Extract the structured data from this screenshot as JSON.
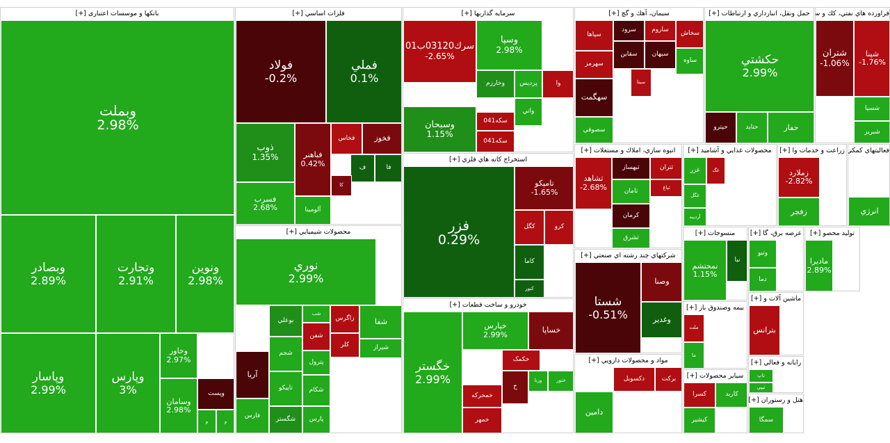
{
  "colors": {
    "strong_up": "#22a91c",
    "up": "#1f8f1a",
    "bright_up": "#37c82e",
    "flat_up": "#0f5f0f",
    "down": "#b00e12",
    "strong_down": "#7b0a0e",
    "deep_down": "#4a0508",
    "header_bg": "#ffffff"
  },
  "sectors": [
    {
      "label": "بانکها و موسسات اعتباری [+]",
      "tiles": [
        {
          "symbol": "وبملت",
          "change": "2.98%",
          "color": "strong_up"
        },
        {
          "symbol": "وبصادر",
          "change": "2.89%",
          "color": "strong_up"
        },
        {
          "symbol": "وتجارت",
          "change": "2.91%",
          "color": "strong_up"
        },
        {
          "symbol": "ونوين",
          "change": "2.98%",
          "color": "strong_up"
        },
        {
          "symbol": "وپاسار",
          "change": "2.99%",
          "color": "strong_up"
        },
        {
          "symbol": "وپارس",
          "change": "3%",
          "color": "strong_up"
        },
        {
          "symbol": "وخاور",
          "change": "2.97%",
          "color": "strong_up"
        },
        {
          "symbol": "وسامان",
          "change": "2.98%",
          "color": "strong_up"
        },
        {
          "symbol": "وپست",
          "change": "",
          "color": "deep_down"
        },
        {
          "symbol": "و",
          "change": "",
          "color": "strong_up"
        },
        {
          "symbol": "و",
          "change": "",
          "color": "strong_up"
        }
      ]
    },
    {
      "label": "فلزات اساسي [+]",
      "tiles": [
        {
          "symbol": "فولاد",
          "change": "-0.2%",
          "color": "deep_down"
        },
        {
          "symbol": "فملي",
          "change": "0.1%",
          "color": "flat_up"
        },
        {
          "symbol": "ذوب",
          "change": "1.35%",
          "color": "up"
        },
        {
          "symbol": "فباهنر",
          "change": "0.42%",
          "color": "strong_down"
        },
        {
          "symbol": "فخاس",
          "change": "",
          "color": "down"
        },
        {
          "symbol": "فخوز",
          "change": "",
          "color": "strong_down"
        },
        {
          "symbol": "ف",
          "change": "",
          "color": "flat_up"
        },
        {
          "symbol": "فا",
          "change": "",
          "color": "flat_up"
        },
        {
          "symbol": "کا",
          "change": "",
          "color": "strong_down"
        },
        {
          "symbol": "فسرب",
          "change": "2.68%",
          "color": "strong_up"
        },
        {
          "symbol": "آلومينا",
          "change": "",
          "color": "strong_up"
        }
      ]
    },
    {
      "label": "سرمايه گذاريها [+]",
      "tiles": [
        {
          "symbol": "سرك03120ب01",
          "change": "-2.65%",
          "color": "down"
        },
        {
          "symbol": "وسپا",
          "change": "2.98%",
          "color": "strong_up"
        },
        {
          "symbol": "وسبحان",
          "change": "1.15%",
          "color": "up"
        },
        {
          "symbol": "پرديس",
          "change": "",
          "color": "strong_up"
        },
        {
          "symbol": "وخارزم",
          "change": "",
          "color": "up"
        },
        {
          "symbol": "سكه041",
          "change": "",
          "color": "down"
        },
        {
          "symbol": "سكه041",
          "change": "",
          "color": "down"
        },
        {
          "symbol": "واتي",
          "change": "",
          "color": "strong_up"
        },
        {
          "symbol": "وا",
          "change": "",
          "color": "down"
        }
      ]
    },
    {
      "label": "استخراج کانه هاي فلزي [+]",
      "tiles": [
        {
          "symbol": "فزر",
          "change": "0.29%",
          "color": "flat_up"
        },
        {
          "symbol": "تامپکو",
          "change": "-1.65%",
          "color": "strong_down"
        },
        {
          "symbol": "کگل",
          "change": "",
          "color": "down"
        },
        {
          "symbol": "کرو",
          "change": "",
          "color": "down"
        },
        {
          "symbol": "کاما",
          "change": "",
          "color": "flat_up"
        },
        {
          "symbol": "کنور",
          "change": "",
          "color": "flat_up"
        }
      ]
    },
    {
      "label": "خودرو و ساخت قطعات [+]",
      "tiles": [
        {
          "symbol": "خگستر",
          "change": "2.99%",
          "color": "strong_up"
        },
        {
          "symbol": "خپارس",
          "change": "2.99%",
          "color": "strong_up"
        },
        {
          "symbol": "خساپا",
          "change": "",
          "color": "strong_down"
        },
        {
          "symbol": "خکمک",
          "change": "",
          "color": "down"
        },
        {
          "symbol": "ورنا",
          "change": "",
          "color": "strong_up"
        },
        {
          "symbol": "خنور",
          "change": "",
          "color": "strong_up"
        },
        {
          "symbol": "خمحرکه",
          "change": "",
          "color": "down"
        },
        {
          "symbol": "خمهر",
          "change": "",
          "color": "down"
        },
        {
          "symbol": "خ",
          "change": "",
          "color": "strong_down"
        }
      ]
    },
    {
      "label": "محصولات شيميايي [+]",
      "tiles": [
        {
          "symbol": "نوري",
          "change": "2.99%",
          "color": "strong_up"
        },
        {
          "symbol": "بوعلي",
          "change": "",
          "color": "up"
        },
        {
          "symbol": "شب",
          "change": "",
          "color": "strong_up"
        },
        {
          "symbol": "زاگرس",
          "change": "",
          "color": "down"
        },
        {
          "symbol": "شفا",
          "change": "",
          "color": "strong_up"
        },
        {
          "symbol": "شفن",
          "change": "",
          "color": "down"
        },
        {
          "symbol": "کلر",
          "change": "",
          "color": "down"
        },
        {
          "symbol": "آريا",
          "change": "",
          "color": "deep_down"
        },
        {
          "symbol": "شجم",
          "change": "",
          "color": "strong_up"
        },
        {
          "symbol": "پترول",
          "change": "",
          "color": "strong_up"
        },
        {
          "symbol": "شيراز",
          "change": "",
          "color": "strong_up"
        },
        {
          "symbol": "تاپيكو",
          "change": "",
          "color": "strong_up"
        },
        {
          "symbol": "شكام",
          "change": "",
          "color": "strong_up"
        },
        {
          "symbol": "فارس",
          "change": "",
          "color": "strong_up"
        },
        {
          "symbol": "شگستر",
          "change": "",
          "color": "up"
        },
        {
          "symbol": "پارس",
          "change": "",
          "color": "strong_up"
        }
      ]
    },
    {
      "label": "سيمان، آهك و گچ [+]",
      "tiles": [
        {
          "symbol": "سپاها",
          "change": "",
          "color": "down"
        },
        {
          "symbol": "سرود",
          "change": "",
          "color": "deep_down"
        },
        {
          "symbol": "ساروم",
          "change": "",
          "color": "down"
        },
        {
          "symbol": "سخاش",
          "change": "",
          "color": "down"
        },
        {
          "symbol": "سهرمز",
          "change": "",
          "color": "down"
        },
        {
          "symbol": "سقاين",
          "change": "",
          "color": "deep_down"
        },
        {
          "symbol": "سبهان",
          "change": "",
          "color": "deep_down"
        },
        {
          "symbol": "ساوه",
          "change": "",
          "color": "strong_up"
        },
        {
          "symbol": "سهگمت",
          "change": "",
          "color": "deep_down"
        },
        {
          "symbol": "سيتا",
          "change": "",
          "color": "down"
        },
        {
          "symbol": "سصوفي",
          "change": "",
          "color": "strong_up"
        }
      ]
    },
    {
      "label": "حمل ونقل، انبارداري و ارتباطات [+]",
      "tiles": [
        {
          "symbol": "حكشتي",
          "change": "2.99%",
          "color": "strong_up"
        },
        {
          "symbol": "حتايد",
          "change": "",
          "color": "strong_up"
        },
        {
          "symbol": "حفار",
          "change": "",
          "color": "strong_up"
        },
        {
          "symbol": "حپترو",
          "change": "",
          "color": "deep_down"
        }
      ]
    },
    {
      "label": "فراورده هاي نفتي، كك و سوخت [+]",
      "tiles": [
        {
          "symbol": "شتران",
          "change": "-1.06%",
          "color": "strong_down"
        },
        {
          "symbol": "شپنا",
          "change": "-1.76%",
          "color": "down"
        },
        {
          "symbol": "شسپا",
          "change": "",
          "color": "strong_up"
        },
        {
          "symbol": "شبريز",
          "change": "",
          "color": "strong_up"
        }
      ]
    },
    {
      "label": "انبوه سازي، املاك و مستغلات [+]",
      "tiles": [
        {
          "symbol": "ثشاهد",
          "change": "-2.68%",
          "color": "down"
        },
        {
          "symbol": "ثبهساز",
          "change": "",
          "color": "deep_down"
        },
        {
          "symbol": "ثتران",
          "change": "",
          "color": "down"
        },
        {
          "symbol": "ثباغ",
          "change": "",
          "color": "down"
        },
        {
          "symbol": "ثامان",
          "change": "",
          "color": "strong_up"
        },
        {
          "symbol": "كرمان",
          "change": "",
          "color": "deep_down"
        },
        {
          "symbol": "ثشرق",
          "change": "",
          "color": "strong_up"
        }
      ]
    },
    {
      "label": "شرکتهاي چند رشته اي صنعتي [+]",
      "tiles": [
        {
          "symbol": "شستا",
          "change": "-0.51%",
          "color": "deep_down"
        },
        {
          "symbol": "وغدير",
          "change": "",
          "color": "flat_up"
        },
        {
          "symbol": "وصنا",
          "change": "",
          "color": "strong_down"
        }
      ]
    },
    {
      "label": "مواد و محصولات دارويي [+]",
      "tiles": [
        {
          "symbol": "دکسوبل",
          "change": "",
          "color": "down"
        },
        {
          "symbol": "بركت",
          "change": "",
          "color": "down"
        },
        {
          "symbol": "دامين",
          "change": "",
          "color": "strong_up"
        }
      ]
    },
    {
      "label": "محصولات غذايي و آشاميد [+]",
      "tiles": [
        {
          "symbol": "غزر",
          "change": "",
          "color": "strong_up"
        },
        {
          "symbol": "غگل",
          "change": "",
          "color": "strong_up"
        },
        {
          "symbol": "غگ",
          "change": "",
          "color": "down"
        },
        {
          "symbol": "آرديبه",
          "change": "",
          "color": "strong_up"
        }
      ]
    },
    {
      "label": "زراعت و خدمات وا [+]",
      "tiles": [
        {
          "symbol": "زملارد",
          "change": "-2.82%",
          "color": "down"
        },
        {
          "symbol": "زفجر",
          "change": "",
          "color": "strong_up"
        }
      ]
    },
    {
      "label": "فعاليتهاي كمكي [+]",
      "tiles": [
        {
          "symbol": "انرژي",
          "change": "",
          "color": "strong_up"
        }
      ]
    },
    {
      "label": "منسوجات [+]",
      "tiles": [
        {
          "symbol": "نمحتشم",
          "change": "1.15%",
          "color": "strong_up"
        },
        {
          "symbol": "نبا",
          "change": "",
          "color": "flat_up"
        }
      ]
    },
    {
      "label": "عرضه برق، گا [+]",
      "tiles": [
        {
          "symbol": "وتبو",
          "change": "",
          "color": "strong_up"
        },
        {
          "symbol": "دما",
          "change": "",
          "color": "strong_up"
        }
      ]
    },
    {
      "label": "توليد محصو [+]",
      "tiles": [
        {
          "symbol": "ماديرا",
          "change": "2.89%",
          "color": "strong_up"
        }
      ]
    },
    {
      "label": "بيمه وصندوق باز [+]",
      "tiles": [
        {
          "symbol": "ملت",
          "change": "",
          "color": "down"
        },
        {
          "symbol": "ما",
          "change": "",
          "color": "strong_up"
        }
      ]
    },
    {
      "label": "ماشين آلات و [+]",
      "tiles": [
        {
          "symbol": "بترانس",
          "change": "",
          "color": "down"
        }
      ]
    },
    {
      "label": "رايانه و فعالي [+]",
      "tiles": [
        {
          "symbol": "تاپ",
          "change": "",
          "color": "strong_up"
        },
        {
          "symbol": "تيپي",
          "change": "",
          "color": "strong_up"
        }
      ]
    },
    {
      "label": "سياير محصولات [+]",
      "tiles": [
        {
          "symbol": "کسرا",
          "change": "",
          "color": "down"
        },
        {
          "symbol": "کاربد",
          "change": "",
          "color": "strong_up"
        },
        {
          "symbol": "کيشير",
          "change": "",
          "color": "strong_up"
        }
      ]
    },
    {
      "label": "هتل و رستوران [+]",
      "tiles": [
        {
          "symbol": "سمگا",
          "change": "",
          "color": "strong_up"
        }
      ]
    }
  ]
}
